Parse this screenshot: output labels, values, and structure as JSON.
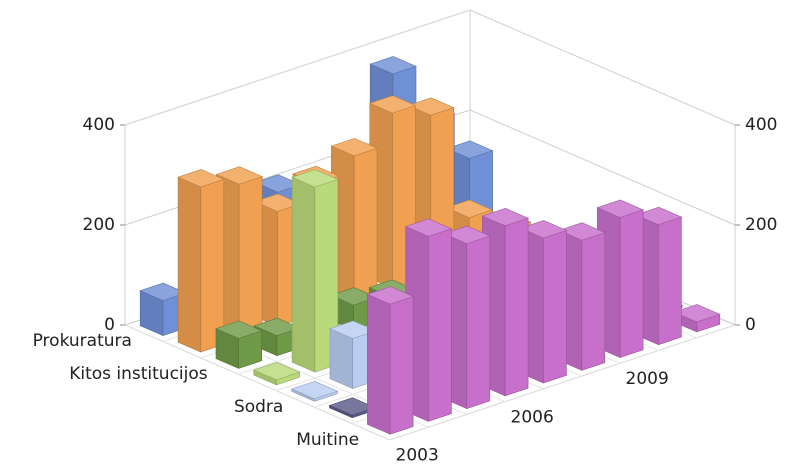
{
  "chart_data": {
    "type": "bar3d",
    "categories": [
      "2003",
      null,
      null,
      "2006",
      null,
      null,
      "2009",
      null,
      null
    ],
    "series": [
      {
        "name": "Prokuratura",
        "color": "#6f8fd6",
        "values": [
          70,
          50,
          150,
          210,
          180,
          200,
          370,
          250,
          150
        ]
      },
      {
        "name": null,
        "color": "#f0a050",
        "values": [
          330,
          310,
          230,
          260,
          290,
          350,
          320,
          90,
          40
        ]
      },
      {
        "name": "Kitos institucijos",
        "color": "#6f9a48",
        "values": [
          60,
          40,
          30,
          50,
          40,
          40,
          80,
          70,
          20
        ]
      },
      {
        "name": null,
        "color": "#b9d97a",
        "values": [
          10,
          370,
          10,
          30,
          40,
          40,
          60,
          50,
          20
        ]
      },
      {
        "name": "Sodra",
        "color": "#b8cdf0",
        "values": [
          5,
          100,
          100,
          90,
          80,
          60,
          70,
          60,
          30
        ]
      },
      {
        "name": null,
        "color": "#5a5a8a",
        "values": [
          5,
          5,
          5,
          5,
          5,
          5,
          5,
          5,
          5
        ]
      },
      {
        "name": "Muitine",
        "color": "#c86fcc",
        "values": [
          260,
          370,
          330,
          340,
          290,
          260,
          280,
          240,
          20
        ]
      }
    ],
    "ylim": [
      0,
      400
    ],
    "yticks": [
      0,
      200,
      400
    ],
    "grid": true
  }
}
